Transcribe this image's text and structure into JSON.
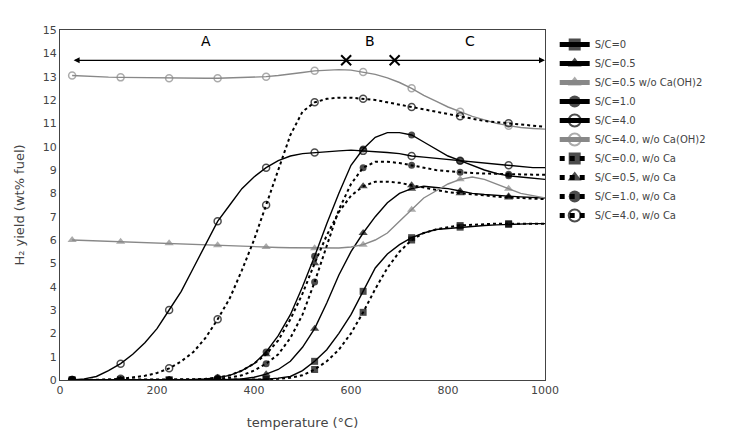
{
  "chart_data": {
    "type": "line",
    "xlabel": "temperature (°C)",
    "ylabel": "H₂ yield (wt% fuel)",
    "xlim": [
      0,
      1000
    ],
    "ylim": [
      0,
      15
    ],
    "xticks": [
      0,
      200,
      400,
      600,
      800,
      1000
    ],
    "yticks": [
      0,
      1,
      2,
      3,
      4,
      5,
      6,
      7,
      8,
      9,
      10,
      11,
      12,
      13,
      14,
      15
    ],
    "grid": false,
    "legend": "right",
    "x": [
      25,
      50,
      75,
      100,
      125,
      150,
      175,
      200,
      225,
      250,
      275,
      300,
      325,
      350,
      375,
      400,
      425,
      450,
      475,
      500,
      525,
      550,
      575,
      600,
      625,
      650,
      675,
      700,
      725,
      750,
      775,
      800,
      825,
      850,
      875,
      900,
      925,
      950,
      975,
      1000
    ],
    "series": [
      {
        "name": "S/C=0",
        "color": "#000000",
        "marker": "square",
        "line_style": "solid",
        "values": [
          0.0,
          0.0,
          0.0,
          0.0,
          0.0,
          0.0,
          0.0,
          0.0,
          0.0,
          0.0,
          0.0,
          0.0,
          0.0,
          0.0,
          0.0,
          0.02,
          0.03,
          0.08,
          0.15,
          0.4,
          0.8,
          1.3,
          2.0,
          2.8,
          3.8,
          4.8,
          5.4,
          5.8,
          6.1,
          6.3,
          6.45,
          6.5,
          6.55,
          6.6,
          6.62,
          6.65,
          6.67,
          6.7,
          6.7,
          6.7
        ]
      },
      {
        "name": "S/C=0.5",
        "color": "#000000",
        "marker": "triangle",
        "line_style": "solid",
        "values": [
          0.0,
          0.0,
          0.0,
          0.0,
          0.0,
          0.0,
          0.0,
          0.0,
          0.0,
          0.0,
          0.0,
          0.0,
          0.0,
          0.02,
          0.05,
          0.12,
          0.25,
          0.45,
          0.8,
          1.4,
          2.2,
          3.3,
          4.5,
          5.5,
          6.3,
          7.0,
          7.6,
          8.0,
          8.2,
          8.3,
          8.25,
          8.2,
          8.1,
          8.0,
          7.95,
          7.9,
          7.88,
          7.85,
          7.82,
          7.8
        ]
      },
      {
        "name": "S/C=0.5 w/o Ca(OH)2",
        "color": "#888888",
        "marker": "triangle",
        "line_style": "solid",
        "values": [
          6.0,
          5.98,
          5.96,
          5.95,
          5.93,
          5.92,
          5.9,
          5.88,
          5.86,
          5.84,
          5.82,
          5.8,
          5.78,
          5.75,
          5.73,
          5.72,
          5.7,
          5.68,
          5.67,
          5.66,
          5.65,
          5.65,
          5.66,
          5.7,
          5.8,
          6.0,
          6.3,
          6.8,
          7.3,
          7.8,
          8.1,
          8.4,
          8.6,
          8.7,
          8.6,
          8.4,
          8.2,
          8.0,
          7.9,
          7.8
        ]
      },
      {
        "name": "S/C=1.0",
        "color": "#000000",
        "marker": "circle",
        "line_style": "solid",
        "values": [
          0.0,
          0.0,
          0.0,
          0.0,
          0.0,
          0.0,
          0.0,
          0.0,
          0.0,
          0.0,
          0.02,
          0.05,
          0.1,
          0.2,
          0.4,
          0.7,
          1.2,
          1.9,
          2.8,
          4.0,
          5.3,
          6.7,
          8.0,
          9.2,
          9.9,
          10.4,
          10.6,
          10.6,
          10.5,
          10.2,
          9.9,
          9.6,
          9.4,
          9.2,
          9.0,
          8.85,
          8.75,
          8.7,
          8.65,
          8.6
        ]
      },
      {
        "name": "S/C=4.0",
        "color": "#000000",
        "marker": "open circle",
        "line_style": "solid",
        "values": [
          0.0,
          0.05,
          0.15,
          0.4,
          0.7,
          1.1,
          1.6,
          2.2,
          3.0,
          3.8,
          4.8,
          5.8,
          6.8,
          7.5,
          8.2,
          8.7,
          9.1,
          9.4,
          9.6,
          9.7,
          9.75,
          9.8,
          9.82,
          9.85,
          9.82,
          9.8,
          9.75,
          9.7,
          9.6,
          9.55,
          9.5,
          9.45,
          9.4,
          9.35,
          9.3,
          9.25,
          9.2,
          9.15,
          9.1,
          9.1
        ]
      },
      {
        "name": "S/C=4.0, w/o Ca(OH)2",
        "color": "#888888",
        "marker": "open circle",
        "line_style": "solid",
        "values": [
          13.05,
          13.02,
          13.0,
          12.98,
          12.97,
          12.96,
          12.95,
          12.94,
          12.93,
          12.93,
          12.93,
          12.93,
          12.93,
          12.94,
          12.95,
          12.97,
          13.0,
          13.05,
          13.1,
          13.18,
          13.25,
          13.28,
          13.3,
          13.28,
          13.2,
          13.1,
          12.95,
          12.75,
          12.5,
          12.2,
          11.95,
          11.7,
          11.5,
          11.3,
          11.15,
          11.0,
          10.9,
          10.82,
          10.78,
          10.75
        ]
      },
      {
        "name": "S/C=0.0, w/o Ca",
        "color": "#000000",
        "marker": "square",
        "line_style": "dotted",
        "values": [
          0.0,
          0.0,
          0.0,
          0.0,
          0.0,
          0.0,
          0.0,
          0.0,
          0.0,
          0.0,
          0.0,
          0.0,
          0.0,
          0.0,
          0.0,
          0.0,
          0.02,
          0.05,
          0.1,
          0.2,
          0.45,
          0.8,
          1.3,
          2.0,
          2.9,
          3.9,
          4.8,
          5.5,
          6.0,
          6.3,
          6.45,
          6.55,
          6.62,
          6.65,
          6.68,
          6.7,
          6.7,
          6.7,
          6.7,
          6.7
        ]
      },
      {
        "name": "S/C=0.5, w/o Ca",
        "color": "#000000",
        "marker": "triangle",
        "line_style": "dotted",
        "values": [
          0.0,
          0.0,
          0.0,
          0.0,
          0.0,
          0.0,
          0.0,
          0.0,
          0.0,
          0.0,
          0.02,
          0.05,
          0.1,
          0.2,
          0.4,
          0.7,
          1.1,
          1.7,
          2.6,
          3.7,
          5.0,
          6.2,
          7.2,
          7.9,
          8.3,
          8.5,
          8.5,
          8.45,
          8.35,
          8.25,
          8.15,
          8.05,
          8.0,
          7.95,
          7.9,
          7.85,
          7.82,
          7.8,
          7.78,
          7.75
        ]
      },
      {
        "name": "S/C=1.0, w/o Ca",
        "color": "#000000",
        "marker": "circle",
        "line_style": "dotted",
        "values": [
          0.0,
          0.0,
          0.0,
          0.0,
          0.0,
          0.0,
          0.0,
          0.0,
          0.0,
          0.0,
          0.0,
          0.02,
          0.05,
          0.1,
          0.2,
          0.4,
          0.7,
          1.1,
          1.8,
          2.8,
          4.2,
          5.8,
          7.3,
          8.4,
          9.1,
          9.35,
          9.35,
          9.3,
          9.2,
          9.1,
          9.0,
          8.95,
          8.9,
          8.87,
          8.85,
          8.83,
          8.82,
          8.8,
          8.8,
          8.8
        ]
      },
      {
        "name": "S/C=4.0, w/o Ca",
        "color": "#000000",
        "marker": "open circle",
        "line_style": "dotted",
        "values": [
          0.0,
          0.0,
          0.0,
          0.02,
          0.05,
          0.1,
          0.18,
          0.3,
          0.5,
          0.8,
          1.2,
          1.8,
          2.6,
          3.5,
          4.7,
          6.0,
          7.5,
          9.0,
          10.5,
          11.5,
          11.9,
          12.05,
          12.1,
          12.1,
          12.05,
          12.0,
          11.9,
          11.8,
          11.7,
          11.6,
          11.5,
          11.4,
          11.3,
          11.2,
          11.1,
          11.05,
          11.0,
          10.95,
          10.9,
          10.85
        ]
      }
    ],
    "annotations": [
      {
        "text": "A",
        "x": 300,
        "y": 14.1
      },
      {
        "text": "B",
        "x": 640,
        "y": 14.1
      },
      {
        "text": "C",
        "x": 845,
        "y": 14.1
      }
    ],
    "arrows": [
      {
        "x": [
          25,
          1000
        ],
        "y": 13.7
      }
    ],
    "point_marks": [
      {
        "x": 590,
        "y": 13.7,
        "marker": "x"
      },
      {
        "x": 690,
        "y": 13.7,
        "marker": "x"
      }
    ]
  }
}
